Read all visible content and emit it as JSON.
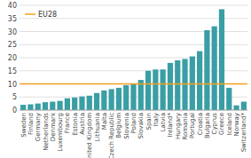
{
  "chart_data": {
    "type": "bar",
    "categories": [
      "Sweden",
      "Finland",
      "Germany",
      "Netherlands",
      "Denmark",
      "Luxembourg",
      "France",
      "Estonia",
      "Austria",
      "United Kingdom",
      "Lithuania",
      "Malta",
      "Czech Republic",
      "Belgium",
      "Slovenia",
      "Poland",
      "Slovakia",
      "Spain",
      "Italy",
      "Latvia",
      "Ireland*",
      "Hungary",
      "Romania",
      "Portugal",
      "Croatia",
      "Bulgaria",
      "Cyprus",
      "Greece",
      "Iceland",
      "Norway",
      "Switzerland*"
    ],
    "values": [
      2.0,
      2.2,
      2.5,
      3.0,
      3.2,
      3.5,
      4.5,
      4.8,
      5.2,
      5.5,
      6.5,
      7.5,
      8.0,
      8.5,
      9.5,
      10.0,
      11.5,
      15.0,
      15.5,
      15.5,
      18.0,
      19.0,
      19.5,
      20.5,
      22.5,
      30.5,
      32.0,
      38.5,
      8.5,
      1.8,
      3.2
    ],
    "color": "#3a9ea5",
    "reference_line": {
      "name": "EU28",
      "value": 10.0,
      "color": "#f4a020"
    },
    "legend": "upper left",
    "ylim": [
      0,
      40
    ],
    "yticks": [
      0,
      5,
      10,
      15,
      20,
      25,
      30,
      35,
      40
    ],
    "grid": true
  }
}
